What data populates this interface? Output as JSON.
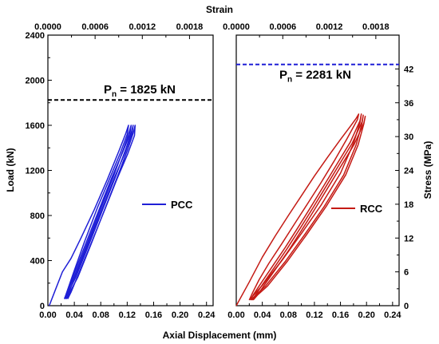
{
  "chart_data": [
    {
      "type": "line",
      "panel": "left",
      "xlabel": "Axial Displacement (mm)",
      "ylabel": "Load (kN)",
      "top_xlabel": "Strain",
      "xlim": [
        0.0,
        0.25
      ],
      "ylim": [
        0,
        2400
      ],
      "top_xlim": [
        0.0,
        0.0021
      ],
      "x_ticks": [
        0.0,
        0.04,
        0.08,
        0.12,
        0.16,
        0.2,
        0.24
      ],
      "x_tick_labels": [
        "0.00",
        "0.04",
        "0.08",
        "0.12",
        "0.16",
        "0.20",
        "0.24"
      ],
      "y_ticks": [
        0,
        400,
        800,
        1200,
        1600,
        2000,
        2400
      ],
      "y_tick_labels": [
        "0",
        "400",
        "800",
        "1200",
        "1600",
        "2000",
        "2400"
      ],
      "top_x_ticks": [
        0.0,
        0.0006,
        0.0012,
        0.0018
      ],
      "top_x_tick_labels": [
        "0.0000",
        "0.0006",
        "0.0012",
        "0.0018"
      ],
      "reference_line": {
        "y": 1825,
        "label_main": "P",
        "label_sub": "n",
        "label_rest": "= 1825 kN",
        "color": "#000000",
        "style": "dashed"
      },
      "legend": {
        "position": "right",
        "entries": [
          "PCC"
        ]
      },
      "series": [
        {
          "name": "PCC",
          "color": "#1f1fd6",
          "loops": [
            {
              "load_x": [
                0.002,
                0.012,
                0.022,
                0.035,
                0.05,
                0.07,
                0.09,
                0.108,
                0.118,
                0.122
              ],
              "load_y": [
                0,
                150,
                300,
                420,
                600,
                850,
                1120,
                1380,
                1530,
                1600
              ],
              "unload_x": [
                0.122,
                0.12,
                0.11,
                0.095,
                0.075,
                0.055,
                0.038,
                0.028,
                0.025
              ],
              "unload_y": [
                1600,
                1520,
                1360,
                1150,
                870,
                560,
                280,
                110,
                60
              ]
            },
            {
              "load_x": [
                0.025,
                0.04,
                0.06,
                0.08,
                0.1,
                0.115,
                0.123,
                0.126
              ],
              "load_y": [
                60,
                260,
                560,
                860,
                1160,
                1400,
                1540,
                1600
              ],
              "unload_x": [
                0.126,
                0.124,
                0.113,
                0.097,
                0.078,
                0.058,
                0.04,
                0.029,
                0.026
              ],
              "unload_y": [
                1600,
                1520,
                1360,
                1140,
                860,
                560,
                290,
                120,
                60
              ]
            },
            {
              "load_x": [
                0.026,
                0.042,
                0.062,
                0.082,
                0.102,
                0.118,
                0.126,
                0.129
              ],
              "load_y": [
                60,
                250,
                540,
                840,
                1140,
                1390,
                1530,
                1600
              ],
              "unload_x": [
                0.129,
                0.127,
                0.117,
                0.101,
                0.082,
                0.062,
                0.044,
                0.032,
                0.028
              ],
              "unload_y": [
                1600,
                1520,
                1360,
                1140,
                860,
                570,
                300,
                120,
                60
              ]
            },
            {
              "load_x": [
                0.028,
                0.045,
                0.065,
                0.085,
                0.105,
                0.121,
                0.129,
                0.132
              ],
              "load_y": [
                60,
                250,
                540,
                840,
                1140,
                1390,
                1530,
                1600
              ],
              "unload_x": [
                0.132,
                0.131,
                0.121,
                0.105,
                0.086,
                0.066,
                0.047,
                0.035,
                0.03
              ],
              "unload_y": [
                1600,
                1510,
                1350,
                1130,
                850,
                560,
                290,
                120,
                60
              ]
            }
          ]
        }
      ]
    },
    {
      "type": "line",
      "panel": "right",
      "xlabel": "Axial Displacement (mm)",
      "ylabel": "Stress (MPa)",
      "top_xlabel": "Strain",
      "xlim": [
        0.0,
        0.25
      ],
      "ylim": [
        0,
        48
      ],
      "top_xlim": [
        0.0,
        0.0021
      ],
      "x_ticks": [
        0.0,
        0.04,
        0.08,
        0.12,
        0.16,
        0.2,
        0.24
      ],
      "x_tick_labels": [
        "0.00",
        "0.04",
        "0.08",
        "0.12",
        "0.16",
        "0.20",
        "0.24"
      ],
      "y_ticks": [
        0,
        6,
        12,
        18,
        24,
        30,
        36,
        42
      ],
      "y_tick_labels": [
        "0",
        "6",
        "12",
        "18",
        "24",
        "30",
        "36",
        "42"
      ],
      "top_x_ticks": [
        0.0,
        0.0006,
        0.0012,
        0.0018
      ],
      "top_x_tick_labels": [
        "0.0000",
        "0.0006",
        "0.0012",
        "0.0018"
      ],
      "reference_line": {
        "y": 42.8,
        "label_main": "P",
        "label_sub": "n",
        "label_rest": "= 2281 kN",
        "color": "#1f1fd6",
        "style": "dashed"
      },
      "legend": {
        "position": "right",
        "entries": [
          "RCC"
        ]
      },
      "series": [
        {
          "name": "RCC",
          "color": "#c41a14",
          "loops": [
            {
              "load_x": [
                0.0,
                0.02,
                0.04,
                0.06,
                0.08,
                0.1,
                0.12,
                0.14,
                0.16,
                0.175,
                0.184,
                0.188
              ],
              "load_y": [
                0,
                4.2,
                8.6,
                12.4,
                16.0,
                19.5,
                23.0,
                26.3,
                29.5,
                31.8,
                33.2,
                34.0
              ],
              "unload_x": [
                0.188,
                0.186,
                0.17,
                0.15,
                0.13,
                0.11,
                0.09,
                0.07,
                0.05,
                0.035,
                0.025,
                0.02
              ],
              "unload_y": [
                34.0,
                33.0,
                29.6,
                25.6,
                21.8,
                18.2,
                14.6,
                11.0,
                7.5,
                4.6,
                2.3,
                1.0
              ]
            },
            {
              "load_x": [
                0.02,
                0.04,
                0.07,
                0.1,
                0.13,
                0.16,
                0.18,
                0.19,
                0.192
              ],
              "load_y": [
                1.0,
                3.6,
                8.0,
                12.8,
                17.8,
                23.5,
                28.8,
                32.5,
                34.0
              ],
              "unload_x": [
                0.192,
                0.19,
                0.175,
                0.155,
                0.135,
                0.115,
                0.095,
                0.075,
                0.055,
                0.038,
                0.026,
                0.022
              ],
              "unload_y": [
                34.0,
                32.8,
                29.0,
                25.2,
                21.4,
                17.6,
                13.9,
                10.3,
                6.9,
                4.0,
                1.9,
                1.0
              ]
            },
            {
              "load_x": [
                0.022,
                0.045,
                0.075,
                0.105,
                0.135,
                0.165,
                0.184,
                0.193,
                0.195
              ],
              "load_y": [
                1.0,
                3.5,
                7.8,
                12.6,
                17.6,
                23.2,
                28.5,
                32.3,
                33.8
              ],
              "unload_x": [
                0.195,
                0.193,
                0.178,
                0.158,
                0.138,
                0.118,
                0.098,
                0.078,
                0.058,
                0.041,
                0.029,
                0.024
              ],
              "unload_y": [
                33.8,
                32.6,
                28.8,
                25.0,
                21.2,
                17.4,
                13.7,
                10.1,
                6.7,
                3.9,
                1.8,
                1.0
              ]
            },
            {
              "load_x": [
                0.024,
                0.048,
                0.078,
                0.108,
                0.138,
                0.168,
                0.187,
                0.196,
                0.198
              ],
              "load_y": [
                1.0,
                3.5,
                7.8,
                12.6,
                17.6,
                23.2,
                28.5,
                32.3,
                33.6
              ],
              "unload_x": [
                0.198,
                0.196,
                0.181,
                0.161,
                0.141,
                0.121,
                0.101,
                0.081,
                0.061,
                0.044,
                0.032,
                0.026
              ],
              "unload_y": [
                33.6,
                32.4,
                28.6,
                24.8,
                21.0,
                17.2,
                13.5,
                9.9,
                6.6,
                3.8,
                1.8,
                1.0
              ]
            }
          ]
        }
      ]
    }
  ]
}
